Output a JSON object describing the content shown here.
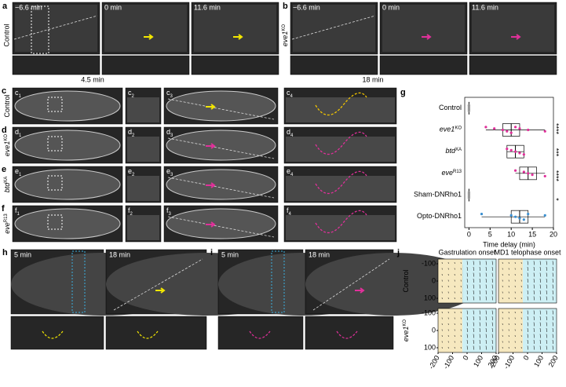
{
  "panels": {
    "a": {
      "letter": "a",
      "row_label": "Control",
      "times": [
        "−6.6 min",
        "0 min",
        "11.6 min"
      ],
      "note": "4.5 min"
    },
    "b": {
      "letter": "b",
      "row_label": {
        "gene": "eve1",
        "sup": "KO"
      },
      "times": [
        "−6.6 min",
        "0 min",
        "11.6 min"
      ],
      "note": "18 min"
    },
    "rows": [
      {
        "letter": "c",
        "label": {
          "gene": "Control",
          "sup": ""
        },
        "subs": [
          "1",
          "2",
          "3",
          "4"
        ]
      },
      {
        "letter": "d",
        "label": {
          "gene": "eve1",
          "sup": "KO"
        },
        "subs": [
          "1",
          "2",
          "3",
          "4"
        ]
      },
      {
        "letter": "e",
        "label": {
          "gene": "btd",
          "sup": "XA"
        },
        "subs": [
          "1",
          "2",
          "3",
          "4"
        ]
      },
      {
        "letter": "f",
        "label": {
          "gene": "eve",
          "sup": "R13"
        },
        "subs": [
          "1",
          "2",
          "3",
          "4"
        ]
      }
    ],
    "h": {
      "letter": "h",
      "times": [
        "5 min",
        "18 min"
      ]
    },
    "i": {
      "letter": "i",
      "times": [
        "5 min",
        "18 min"
      ]
    },
    "j": {
      "letter": "j",
      "columns": [
        "Gastrulation onset",
        "MD1 telophase onset"
      ],
      "rows": [
        {
          "gene": "Control",
          "sup": ""
        },
        {
          "gene": "eve1",
          "sup": "KO"
        }
      ],
      "yticks": [
        -100,
        0,
        100
      ],
      "xticks": [
        -200,
        -100,
        0,
        100,
        200
      ]
    }
  },
  "chart_data": {
    "type": "box",
    "letter": "g",
    "categories": [
      "Control",
      "eve1",
      "btd",
      "eve",
      "Sham-DNRho1",
      "Opto-DNRho1"
    ],
    "category_sups": {
      "1": "KO",
      "2": "XA",
      "3": "R13"
    },
    "colors": [
      "#999999",
      "#e0309a",
      "#e0309a",
      "#e0309a",
      "#999999",
      "#3a8fd0"
    ],
    "q1": [
      0,
      8,
      9,
      12,
      0,
      10
    ],
    "median": [
      0,
      10,
      11,
      14,
      0,
      12
    ],
    "q3": [
      0,
      12,
      13,
      16,
      0,
      14
    ],
    "whisker_low": [
      0,
      4,
      9,
      11,
      0,
      3
    ],
    "whisker_high": [
      0,
      18,
      13,
      18,
      0,
      18
    ],
    "points": [
      [
        0,
        0,
        0,
        0,
        0,
        0
      ],
      [
        4,
        6,
        8,
        9,
        10,
        11,
        12,
        14,
        18
      ],
      [
        9,
        10,
        11,
        12,
        13
      ],
      [
        11,
        13,
        14,
        15,
        18
      ],
      [
        0,
        0,
        0,
        0,
        0
      ],
      [
        3,
        10,
        11,
        12,
        13,
        14,
        18
      ]
    ],
    "xlabel": "Time delay (min)",
    "xlim": [
      -1,
      20
    ],
    "xticks": [
      0,
      5,
      10,
      15,
      20
    ],
    "annotations": [
      "****",
      "***",
      "****",
      "*"
    ]
  }
}
